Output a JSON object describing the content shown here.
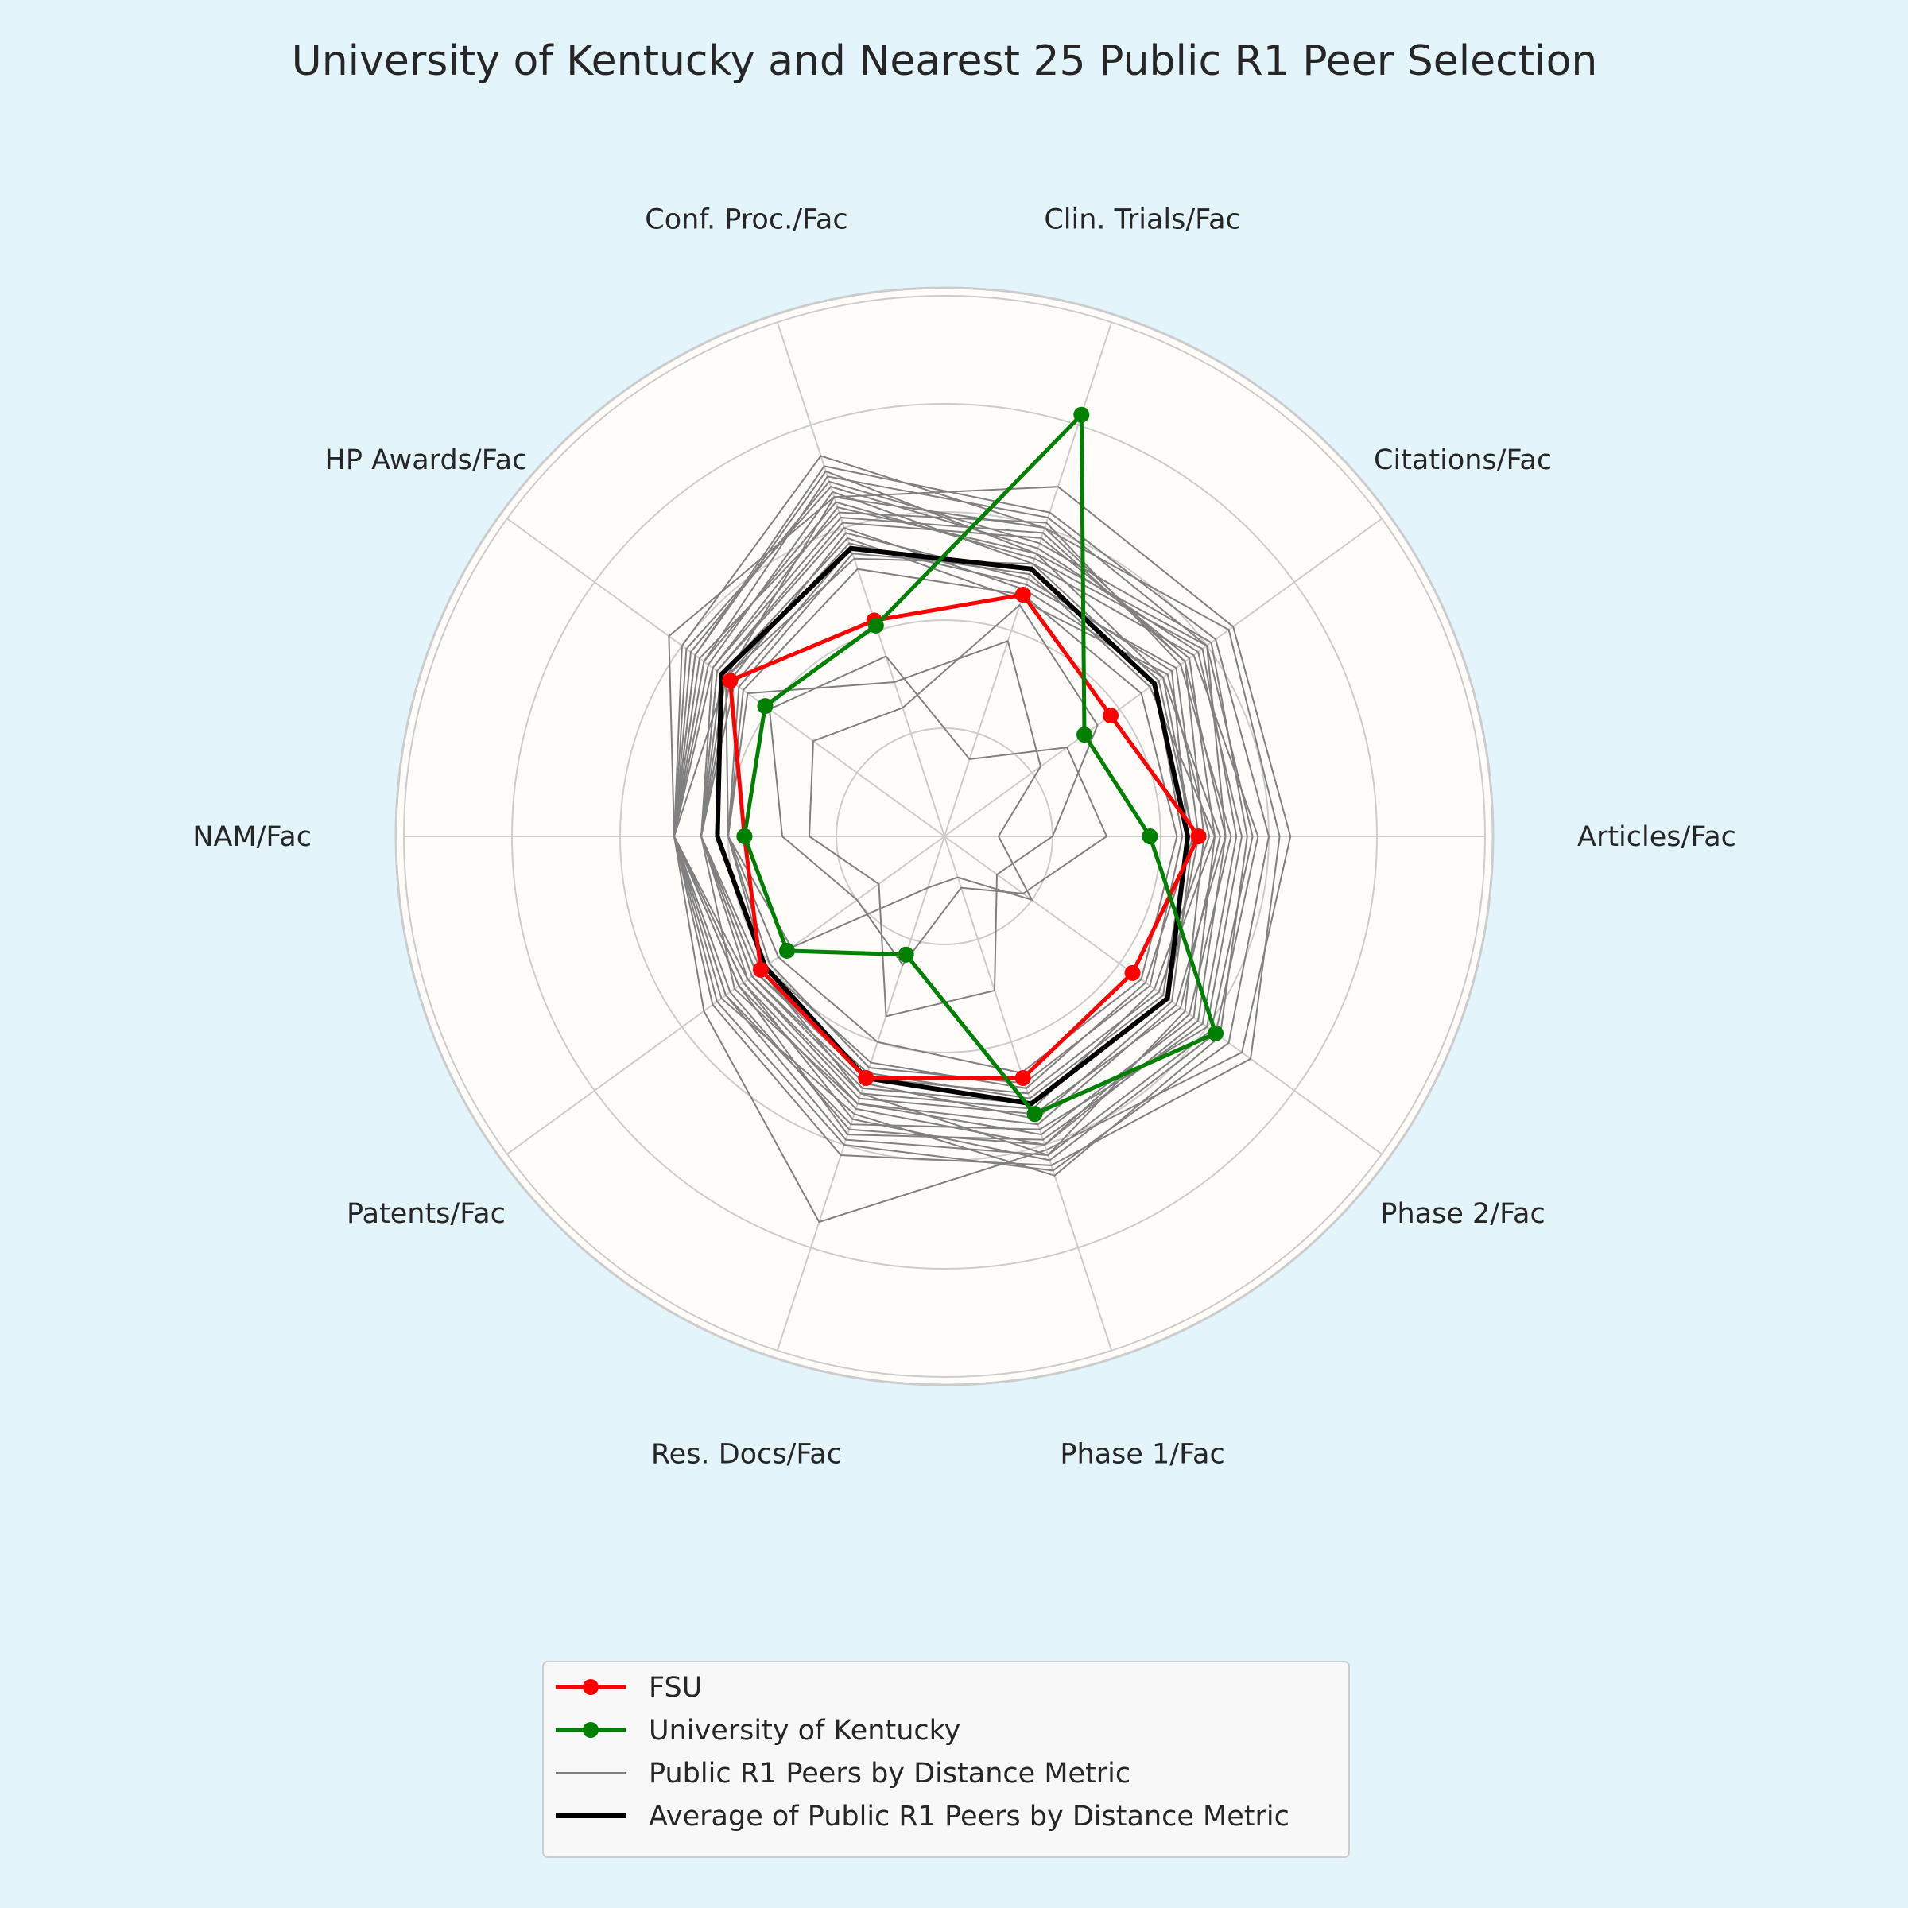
{
  "chart_data": {
    "type": "radar",
    "title": "University of Kentucky and Nearest 25 Public R1 Peer Selection",
    "axes": [
      "Articles/Fac",
      "Citations/Fac",
      "Clin. Trials/Fac",
      "Conf. Proc./Fac",
      "HP Awards/Fac",
      "NAM/Fac",
      "Patents/Fac",
      "Res. Docs/Fac",
      "Phase 1/Fac",
      "Phase 2/Fac"
    ],
    "rlim": [
      0,
      1
    ],
    "grid": true,
    "legend_position": "bottom",
    "series": [
      {
        "name": "FSU",
        "values": [
          0.47,
          0.38,
          0.47,
          0.42,
          0.49,
          0.37,
          0.42,
          0.47,
          0.47,
          0.43
        ],
        "color": "#ff0000",
        "style": "main"
      },
      {
        "name": "University of Kentucky",
        "values": [
          0.38,
          0.32,
          0.82,
          0.41,
          0.41,
          0.37,
          0.36,
          0.23,
          0.54,
          0.62
        ],
        "color": "#008000",
        "style": "main"
      },
      {
        "name": "Average of Public R1 Peers by Distance Metric",
        "values": [
          0.45,
          0.48,
          0.52,
          0.56,
          0.51,
          0.42,
          0.41,
          0.47,
          0.52,
          0.51
        ],
        "color": "#000000",
        "style": "avg"
      }
    ],
    "peers": {
      "name": "Public R1 Peers by Distance Metric",
      "color": "#808080",
      "values": [
        [
          0.52,
          0.6,
          0.62,
          0.7,
          0.55,
          0.5,
          0.47,
          0.53,
          0.6,
          0.58
        ],
        [
          0.48,
          0.55,
          0.6,
          0.66,
          0.5,
          0.5,
          0.45,
          0.5,
          0.62,
          0.55
        ],
        [
          0.55,
          0.58,
          0.56,
          0.68,
          0.59,
          0.5,
          0.5,
          0.56,
          0.57,
          0.6
        ],
        [
          0.6,
          0.62,
          0.63,
          0.72,
          0.57,
          0.5,
          0.52,
          0.6,
          0.65,
          0.65
        ],
        [
          0.46,
          0.5,
          0.55,
          0.64,
          0.53,
          0.45,
          0.44,
          0.48,
          0.55,
          0.52
        ],
        [
          0.5,
          0.56,
          0.58,
          0.61,
          0.52,
          0.45,
          0.48,
          0.52,
          0.58,
          0.57
        ],
        [
          0.58,
          0.57,
          0.53,
          0.67,
          0.54,
          0.5,
          0.46,
          0.55,
          0.63,
          0.62
        ],
        [
          0.45,
          0.52,
          0.5,
          0.59,
          0.49,
          0.45,
          0.43,
          0.46,
          0.51,
          0.5
        ],
        [
          0.53,
          0.54,
          0.61,
          0.63,
          0.56,
          0.5,
          0.49,
          0.57,
          0.6,
          0.56
        ],
        [
          0.49,
          0.51,
          0.46,
          0.58,
          0.51,
          0.45,
          0.42,
          0.5,
          0.53,
          0.48
        ],
        [
          0.56,
          0.61,
          0.57,
          0.69,
          0.58,
          0.5,
          0.51,
          0.54,
          0.66,
          0.63
        ],
        [
          0.44,
          0.48,
          0.52,
          0.55,
          0.47,
          0.4,
          0.4,
          0.45,
          0.48,
          0.47
        ],
        [
          0.62,
          0.65,
          0.6,
          0.74,
          0.6,
          0.5,
          0.53,
          0.62,
          0.64,
          0.7
        ],
        [
          0.47,
          0.53,
          0.49,
          0.57,
          0.5,
          0.45,
          0.44,
          0.49,
          0.52,
          0.51
        ],
        [
          0.51,
          0.5,
          0.48,
          0.6,
          0.52,
          0.45,
          0.45,
          0.51,
          0.54,
          0.54
        ],
        [
          0.43,
          0.45,
          0.47,
          0.52,
          0.46,
          0.4,
          0.38,
          0.4,
          0.46,
          0.45
        ],
        [
          0.54,
          0.59,
          0.54,
          0.65,
          0.55,
          0.5,
          0.47,
          0.58,
          0.59,
          0.59
        ],
        [
          0.5,
          0.47,
          0.51,
          0.56,
          0.48,
          0.45,
          0.43,
          0.47,
          0.5,
          0.49
        ],
        [
          0.57,
          0.6,
          0.55,
          0.71,
          0.57,
          0.5,
          0.5,
          0.59,
          0.62,
          0.61
        ],
        [
          0.46,
          0.49,
          0.53,
          0.54,
          0.5,
          0.4,
          0.41,
          0.44,
          0.49,
          0.46
        ],
        [
          0.52,
          0.55,
          0.59,
          0.62,
          0.53,
          0.5,
          0.46,
          0.52,
          0.56,
          0.53
        ],
        [
          0.64,
          0.66,
          0.68,
          0.66,
          0.63,
          0.5,
          0.55,
          0.75,
          0.61,
          0.68
        ],
        [
          0.3,
          0.28,
          0.15,
          0.35,
          0.4,
          0.3,
          0.2,
          0.25,
          0.1,
          0.18
        ],
        [
          0.1,
          0.22,
          0.38,
          0.3,
          0.45,
          0.4,
          0.35,
          0.1,
          0.08,
          0.2
        ],
        [
          0.2,
          0.35,
          0.45,
          0.25,
          0.3,
          0.25,
          0.15,
          0.35,
          0.3,
          0.12
        ]
      ]
    }
  }
}
